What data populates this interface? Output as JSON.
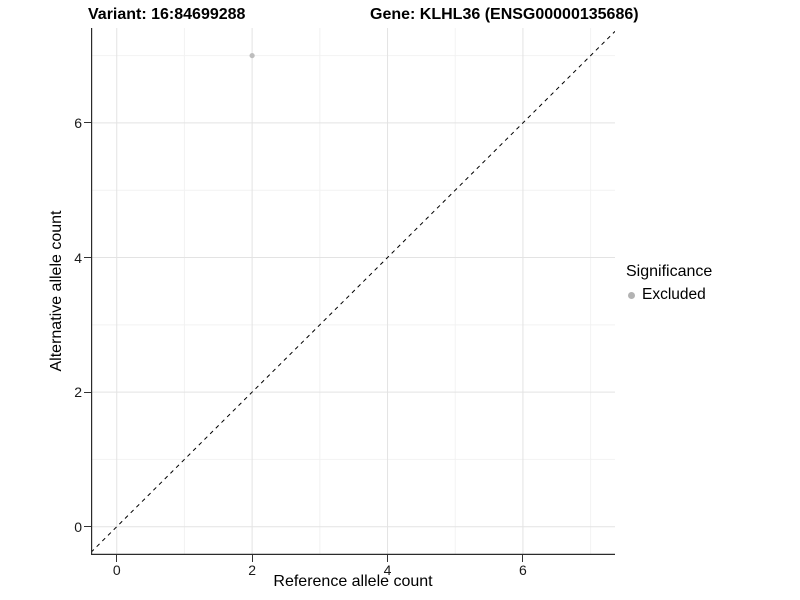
{
  "titles": {
    "variant": "Variant: 16:84699288",
    "gene": "Gene: KLHL36 (ENSG00000135686)"
  },
  "chart_data": {
    "type": "scatter",
    "xlabel": "Reference allele count",
    "ylabel": "Alternative allele count",
    "xlim": [
      -0.38,
      7.36
    ],
    "ylim": [
      -0.42,
      7.41
    ],
    "xticks": [
      0,
      2,
      4,
      6
    ],
    "yticks": [
      0,
      2,
      4,
      6
    ],
    "minor_xticks": [
      1,
      3,
      5,
      7
    ],
    "minor_yticks": [
      1,
      3,
      5,
      7
    ],
    "grid": true,
    "points": [
      {
        "x": 2,
        "y": 7,
        "significance": "Excluded"
      }
    ],
    "identity_line": {
      "style": "dashed",
      "slope": 1,
      "intercept": 0
    },
    "legend": {
      "title": "Significance",
      "position": "right",
      "entries": [
        {
          "label": "Excluded",
          "color": "#b3b3b3"
        }
      ]
    }
  },
  "colors": {
    "point": "#bdbdbd",
    "major_grid": "#e3e3e3",
    "minor_grid": "#f2f2f2",
    "axis_line": "#2b2b2b",
    "tick": "#333333",
    "identity_line": "#000000",
    "background": "#ffffff"
  }
}
